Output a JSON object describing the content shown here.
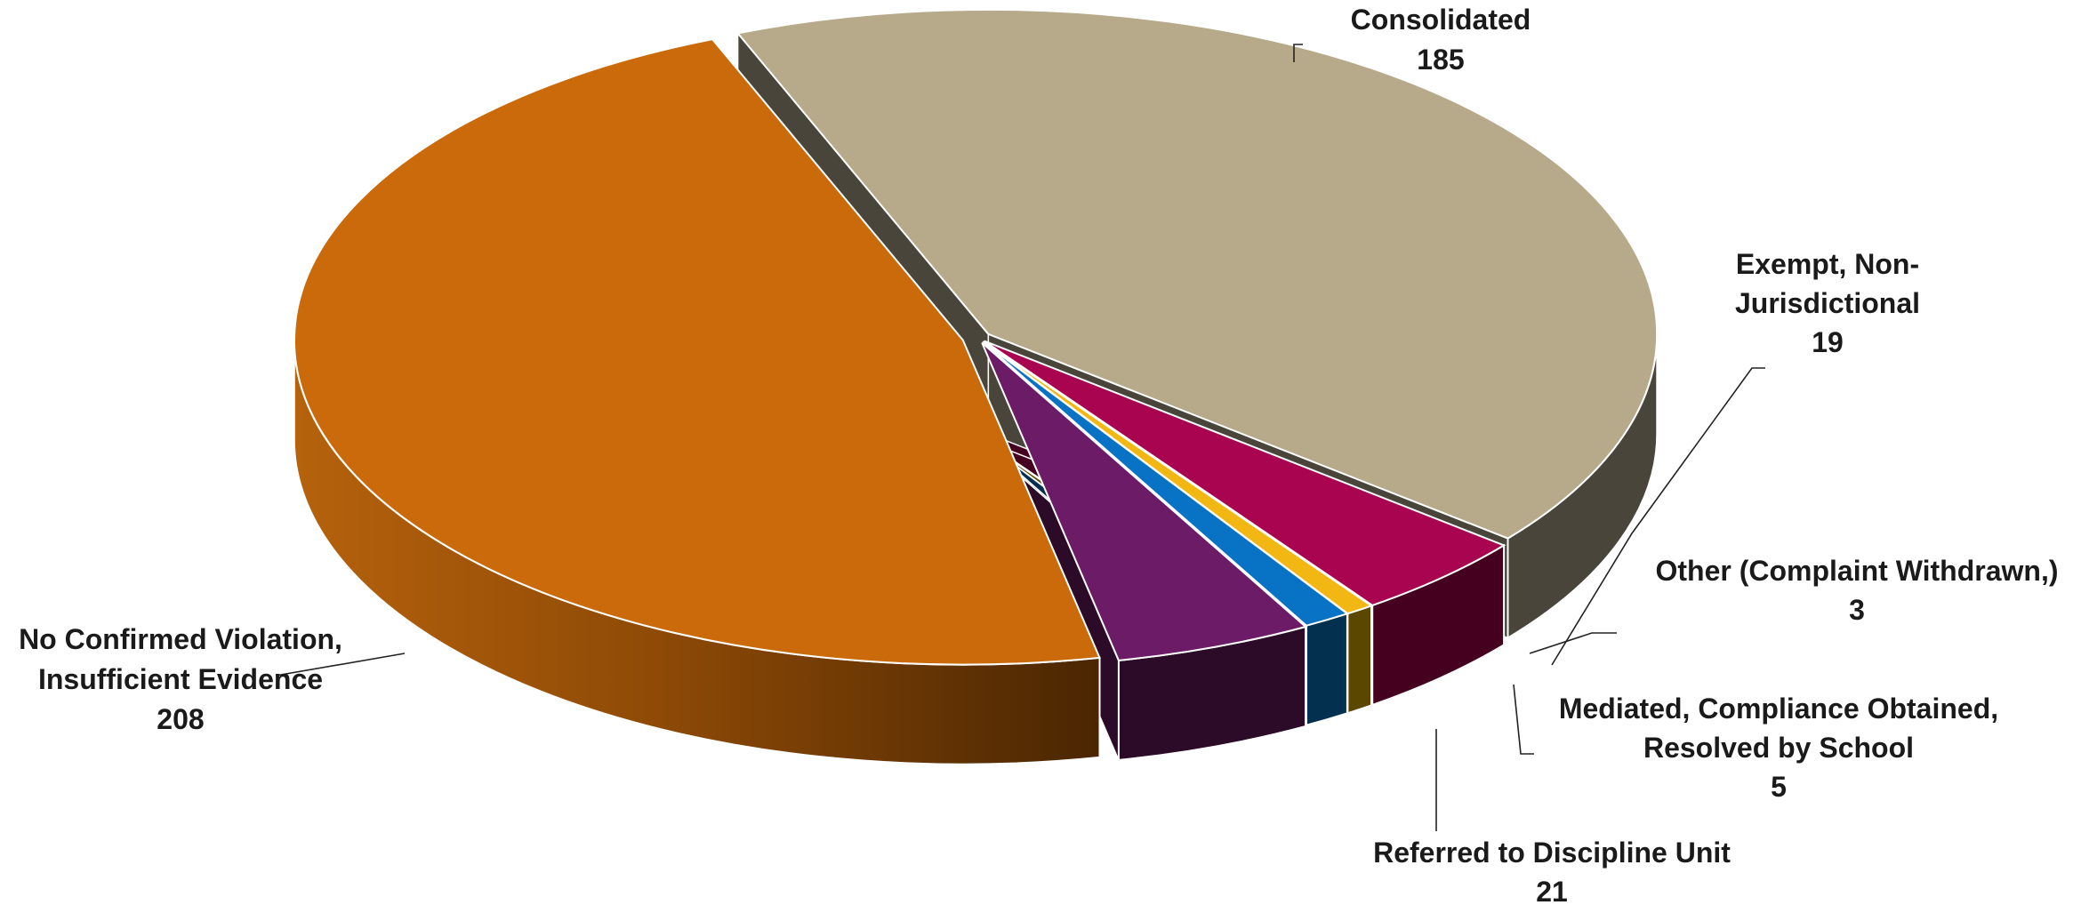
{
  "chart_data": {
    "type": "pie",
    "title": "",
    "style": "3d-exploded",
    "slices": [
      {
        "label": "Consolidated",
        "value": 185,
        "color": "#B7AA8B",
        "side": "#4A453A"
      },
      {
        "label": "Exempt, Non-Jurisdictional",
        "value": 19,
        "color": "#A9044F",
        "side": "#45001F"
      },
      {
        "label": "Other (Complaint Withdrawn,)",
        "value": 3,
        "color": "#F2B713",
        "side": "#5C4700"
      },
      {
        "label": "Mediated, Compliance Obtained, Resolved by School",
        "value": 5,
        "color": "#0872C4",
        "side": "#04304F"
      },
      {
        "label": "Referred to Discipline Unit",
        "value": 21,
        "color": "#6C1C66",
        "side": "#2C0B29"
      },
      {
        "label": "No Confirmed Violation, Insufficient Evidence",
        "value": 208,
        "color": "#CA6A0A",
        "side": "#A85A0C"
      }
    ]
  }
}
